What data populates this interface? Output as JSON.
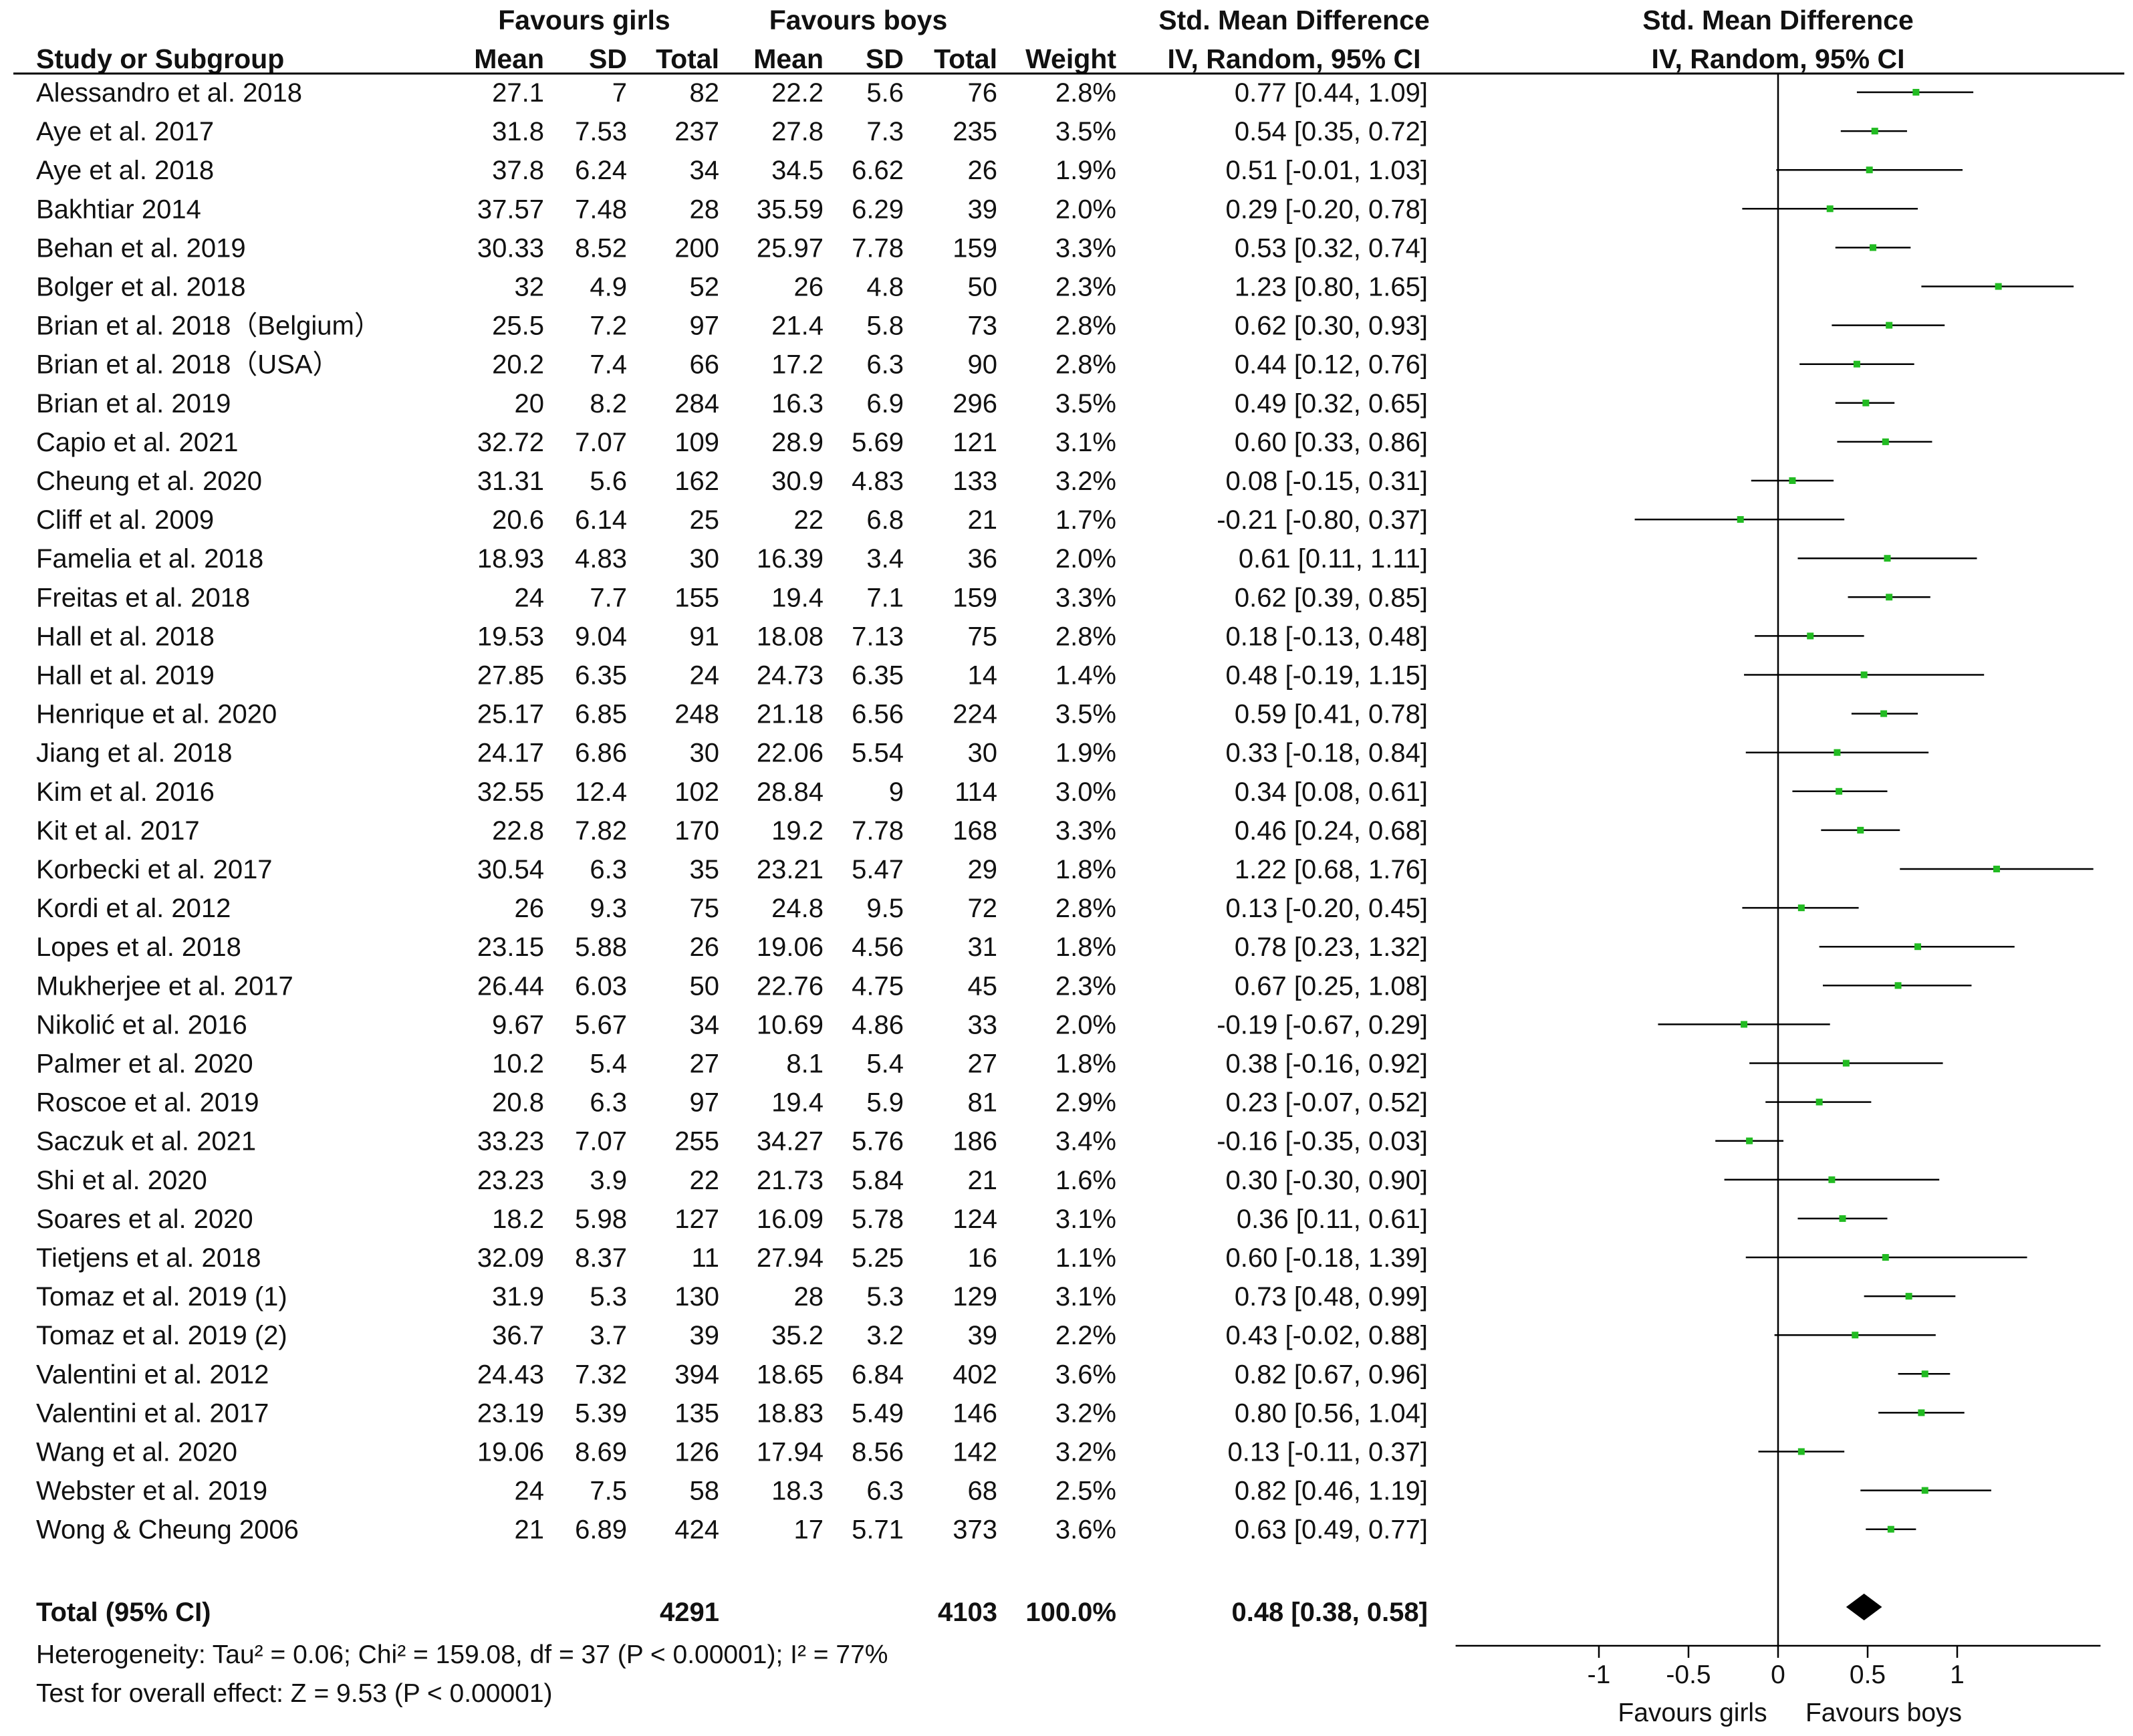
{
  "chart_data": {
    "type": "forest",
    "title": "Std. Mean Difference",
    "headers": {
      "group1": "Favours girls",
      "group2": "Favours boys",
      "study": "Study or Subgroup",
      "mean": "Mean",
      "sd": "SD",
      "total": "Total",
      "weight": "Weight",
      "smd": "Std. Mean Difference",
      "method": "IV, Random, 95% CI"
    },
    "studies": [
      {
        "name": "Alessandro et al. 2018",
        "m1": "27.1",
        "sd1": "7",
        "n1": "82",
        "m2": "22.2",
        "sd2": "5.6",
        "n2": "76",
        "weight": "2.8%",
        "ci_text": "0.77 [0.44, 1.09]",
        "est": 0.77,
        "lo": 0.44,
        "hi": 1.09
      },
      {
        "name": "Aye et al. 2017",
        "m1": "31.8",
        "sd1": "7.53",
        "n1": "237",
        "m2": "27.8",
        "sd2": "7.3",
        "n2": "235",
        "weight": "3.5%",
        "ci_text": "0.54 [0.35, 0.72]",
        "est": 0.54,
        "lo": 0.35,
        "hi": 0.72
      },
      {
        "name": "Aye et al. 2018",
        "m1": "37.8",
        "sd1": "6.24",
        "n1": "34",
        "m2": "34.5",
        "sd2": "6.62",
        "n2": "26",
        "weight": "1.9%",
        "ci_text": "0.51 [-0.01, 1.03]",
        "est": 0.51,
        "lo": -0.01,
        "hi": 1.03
      },
      {
        "name": "Bakhtiar 2014",
        "m1": "37.57",
        "sd1": "7.48",
        "n1": "28",
        "m2": "35.59",
        "sd2": "6.29",
        "n2": "39",
        "weight": "2.0%",
        "ci_text": "0.29 [-0.20, 0.78]",
        "est": 0.29,
        "lo": -0.2,
        "hi": 0.78
      },
      {
        "name": "Behan et al. 2019",
        "m1": "30.33",
        "sd1": "8.52",
        "n1": "200",
        "m2": "25.97",
        "sd2": "7.78",
        "n2": "159",
        "weight": "3.3%",
        "ci_text": "0.53 [0.32, 0.74]",
        "est": 0.53,
        "lo": 0.32,
        "hi": 0.74
      },
      {
        "name": "Bolger et al. 2018",
        "m1": "32",
        "sd1": "4.9",
        "n1": "52",
        "m2": "26",
        "sd2": "4.8",
        "n2": "50",
        "weight": "2.3%",
        "ci_text": "1.23 [0.80, 1.65]",
        "est": 1.23,
        "lo": 0.8,
        "hi": 1.65
      },
      {
        "name": "Brian et al. 2018（Belgium）",
        "m1": "25.5",
        "sd1": "7.2",
        "n1": "97",
        "m2": "21.4",
        "sd2": "5.8",
        "n2": "73",
        "weight": "2.8%",
        "ci_text": "0.62 [0.30, 0.93]",
        "est": 0.62,
        "lo": 0.3,
        "hi": 0.93
      },
      {
        "name": "Brian et al. 2018（USA）",
        "m1": "20.2",
        "sd1": "7.4",
        "n1": "66",
        "m2": "17.2",
        "sd2": "6.3",
        "n2": "90",
        "weight": "2.8%",
        "ci_text": "0.44 [0.12, 0.76]",
        "est": 0.44,
        "lo": 0.12,
        "hi": 0.76
      },
      {
        "name": "Brian et al. 2019",
        "m1": "20",
        "sd1": "8.2",
        "n1": "284",
        "m2": "16.3",
        "sd2": "6.9",
        "n2": "296",
        "weight": "3.5%",
        "ci_text": "0.49 [0.32, 0.65]",
        "est": 0.49,
        "lo": 0.32,
        "hi": 0.65
      },
      {
        "name": "Capio et al. 2021",
        "m1": "32.72",
        "sd1": "7.07",
        "n1": "109",
        "m2": "28.9",
        "sd2": "5.69",
        "n2": "121",
        "weight": "3.1%",
        "ci_text": "0.60 [0.33, 0.86]",
        "est": 0.6,
        "lo": 0.33,
        "hi": 0.86
      },
      {
        "name": "Cheung et al. 2020",
        "m1": "31.31",
        "sd1": "5.6",
        "n1": "162",
        "m2": "30.9",
        "sd2": "4.83",
        "n2": "133",
        "weight": "3.2%",
        "ci_text": "0.08 [-0.15, 0.31]",
        "est": 0.08,
        "lo": -0.15,
        "hi": 0.31
      },
      {
        "name": "Cliff et al. 2009",
        "m1": "20.6",
        "sd1": "6.14",
        "n1": "25",
        "m2": "22",
        "sd2": "6.8",
        "n2": "21",
        "weight": "1.7%",
        "ci_text": "-0.21 [-0.80, 0.37]",
        "est": -0.21,
        "lo": -0.8,
        "hi": 0.37
      },
      {
        "name": "Famelia et al. 2018",
        "m1": "18.93",
        "sd1": "4.83",
        "n1": "30",
        "m2": "16.39",
        "sd2": "3.4",
        "n2": "36",
        "weight": "2.0%",
        "ci_text": "0.61 [0.11, 1.11]",
        "est": 0.61,
        "lo": 0.11,
        "hi": 1.11
      },
      {
        "name": "Freitas et al. 2018",
        "m1": "24",
        "sd1": "7.7",
        "n1": "155",
        "m2": "19.4",
        "sd2": "7.1",
        "n2": "159",
        "weight": "3.3%",
        "ci_text": "0.62 [0.39, 0.85]",
        "est": 0.62,
        "lo": 0.39,
        "hi": 0.85
      },
      {
        "name": "Hall et al. 2018",
        "m1": "19.53",
        "sd1": "9.04",
        "n1": "91",
        "m2": "18.08",
        "sd2": "7.13",
        "n2": "75",
        "weight": "2.8%",
        "ci_text": "0.18 [-0.13, 0.48]",
        "est": 0.18,
        "lo": -0.13,
        "hi": 0.48
      },
      {
        "name": "Hall et al. 2019",
        "m1": "27.85",
        "sd1": "6.35",
        "n1": "24",
        "m2": "24.73",
        "sd2": "6.35",
        "n2": "14",
        "weight": "1.4%",
        "ci_text": "0.48 [-0.19, 1.15]",
        "est": 0.48,
        "lo": -0.19,
        "hi": 1.15
      },
      {
        "name": "Henrique et al. 2020",
        "m1": "25.17",
        "sd1": "6.85",
        "n1": "248",
        "m2": "21.18",
        "sd2": "6.56",
        "n2": "224",
        "weight": "3.5%",
        "ci_text": "0.59 [0.41, 0.78]",
        "est": 0.59,
        "lo": 0.41,
        "hi": 0.78
      },
      {
        "name": "Jiang et al. 2018",
        "m1": "24.17",
        "sd1": "6.86",
        "n1": "30",
        "m2": "22.06",
        "sd2": "5.54",
        "n2": "30",
        "weight": "1.9%",
        "ci_text": "0.33 [-0.18, 0.84]",
        "est": 0.33,
        "lo": -0.18,
        "hi": 0.84
      },
      {
        "name": "Kim et al. 2016",
        "m1": "32.55",
        "sd1": "12.4",
        "n1": "102",
        "m2": "28.84",
        "sd2": "9",
        "n2": "114",
        "weight": "3.0%",
        "ci_text": "0.34 [0.08, 0.61]",
        "est": 0.34,
        "lo": 0.08,
        "hi": 0.61
      },
      {
        "name": "Kit et al. 2017",
        "m1": "22.8",
        "sd1": "7.82",
        "n1": "170",
        "m2": "19.2",
        "sd2": "7.78",
        "n2": "168",
        "weight": "3.3%",
        "ci_text": "0.46 [0.24, 0.68]",
        "est": 0.46,
        "lo": 0.24,
        "hi": 0.68
      },
      {
        "name": "Korbecki et al. 2017",
        "m1": "30.54",
        "sd1": "6.3",
        "n1": "35",
        "m2": "23.21",
        "sd2": "5.47",
        "n2": "29",
        "weight": "1.8%",
        "ci_text": "1.22 [0.68, 1.76]",
        "est": 1.22,
        "lo": 0.68,
        "hi": 1.76
      },
      {
        "name": "Kordi et al. 2012",
        "m1": "26",
        "sd1": "9.3",
        "n1": "75",
        "m2": "24.8",
        "sd2": "9.5",
        "n2": "72",
        "weight": "2.8%",
        "ci_text": "0.13 [-0.20, 0.45]",
        "est": 0.13,
        "lo": -0.2,
        "hi": 0.45
      },
      {
        "name": "Lopes et al. 2018",
        "m1": "23.15",
        "sd1": "5.88",
        "n1": "26",
        "m2": "19.06",
        "sd2": "4.56",
        "n2": "31",
        "weight": "1.8%",
        "ci_text": "0.78 [0.23, 1.32]",
        "est": 0.78,
        "lo": 0.23,
        "hi": 1.32
      },
      {
        "name": "Mukherjee et al. 2017",
        "m1": "26.44",
        "sd1": "6.03",
        "n1": "50",
        "m2": "22.76",
        "sd2": "4.75",
        "n2": "45",
        "weight": "2.3%",
        "ci_text": "0.67 [0.25, 1.08]",
        "est": 0.67,
        "lo": 0.25,
        "hi": 1.08
      },
      {
        "name": "Nikolić et al. 2016",
        "m1": "9.67",
        "sd1": "5.67",
        "n1": "34",
        "m2": "10.69",
        "sd2": "4.86",
        "n2": "33",
        "weight": "2.0%",
        "ci_text": "-0.19 [-0.67, 0.29]",
        "est": -0.19,
        "lo": -0.67,
        "hi": 0.29
      },
      {
        "name": "Palmer et al. 2020",
        "m1": "10.2",
        "sd1": "5.4",
        "n1": "27",
        "m2": "8.1",
        "sd2": "5.4",
        "n2": "27",
        "weight": "1.8%",
        "ci_text": "0.38 [-0.16, 0.92]",
        "est": 0.38,
        "lo": -0.16,
        "hi": 0.92
      },
      {
        "name": "Roscoe et al. 2019",
        "m1": "20.8",
        "sd1": "6.3",
        "n1": "97",
        "m2": "19.4",
        "sd2": "5.9",
        "n2": "81",
        "weight": "2.9%",
        "ci_text": "0.23 [-0.07, 0.52]",
        "est": 0.23,
        "lo": -0.07,
        "hi": 0.52
      },
      {
        "name": "Saczuk et al. 2021",
        "m1": "33.23",
        "sd1": "7.07",
        "n1": "255",
        "m2": "34.27",
        "sd2": "5.76",
        "n2": "186",
        "weight": "3.4%",
        "ci_text": "-0.16 [-0.35, 0.03]",
        "est": -0.16,
        "lo": -0.35,
        "hi": 0.03
      },
      {
        "name": "Shi et al. 2020",
        "m1": "23.23",
        "sd1": "3.9",
        "n1": "22",
        "m2": "21.73",
        "sd2": "5.84",
        "n2": "21",
        "weight": "1.6%",
        "ci_text": "0.30 [-0.30, 0.90]",
        "est": 0.3,
        "lo": -0.3,
        "hi": 0.9
      },
      {
        "name": "Soares et al. 2020",
        "m1": "18.2",
        "sd1": "5.98",
        "n1": "127",
        "m2": "16.09",
        "sd2": "5.78",
        "n2": "124",
        "weight": "3.1%",
        "ci_text": "0.36 [0.11, 0.61]",
        "est": 0.36,
        "lo": 0.11,
        "hi": 0.61
      },
      {
        "name": "Tietjens et al. 2018",
        "m1": "32.09",
        "sd1": "8.37",
        "n1": "11",
        "m2": "27.94",
        "sd2": "5.25",
        "n2": "16",
        "weight": "1.1%",
        "ci_text": "0.60 [-0.18, 1.39]",
        "est": 0.6,
        "lo": -0.18,
        "hi": 1.39
      },
      {
        "name": "Tomaz et al. 2019 (1)",
        "m1": "31.9",
        "sd1": "5.3",
        "n1": "130",
        "m2": "28",
        "sd2": "5.3",
        "n2": "129",
        "weight": "3.1%",
        "ci_text": "0.73 [0.48, 0.99]",
        "est": 0.73,
        "lo": 0.48,
        "hi": 0.99
      },
      {
        "name": "Tomaz et al. 2019 (2)",
        "m1": "36.7",
        "sd1": "3.7",
        "n1": "39",
        "m2": "35.2",
        "sd2": "3.2",
        "n2": "39",
        "weight": "2.2%",
        "ci_text": "0.43 [-0.02, 0.88]",
        "est": 0.43,
        "lo": -0.02,
        "hi": 0.88
      },
      {
        "name": "Valentini et al. 2012",
        "m1": "24.43",
        "sd1": "7.32",
        "n1": "394",
        "m2": "18.65",
        "sd2": "6.84",
        "n2": "402",
        "weight": "3.6%",
        "ci_text": "0.82 [0.67, 0.96]",
        "est": 0.82,
        "lo": 0.67,
        "hi": 0.96
      },
      {
        "name": "Valentini et al. 2017",
        "m1": "23.19",
        "sd1": "5.39",
        "n1": "135",
        "m2": "18.83",
        "sd2": "5.49",
        "n2": "146",
        "weight": "3.2%",
        "ci_text": "0.80 [0.56, 1.04]",
        "est": 0.8,
        "lo": 0.56,
        "hi": 1.04
      },
      {
        "name": "Wang et al. 2020",
        "m1": "19.06",
        "sd1": "8.69",
        "n1": "126",
        "m2": "17.94",
        "sd2": "8.56",
        "n2": "142",
        "weight": "3.2%",
        "ci_text": "0.13 [-0.11, 0.37]",
        "est": 0.13,
        "lo": -0.11,
        "hi": 0.37
      },
      {
        "name": "Webster et al. 2019",
        "m1": "24",
        "sd1": "7.5",
        "n1": "58",
        "m2": "18.3",
        "sd2": "6.3",
        "n2": "68",
        "weight": "2.5%",
        "ci_text": "0.82 [0.46, 1.19]",
        "est": 0.82,
        "lo": 0.46,
        "hi": 1.19
      },
      {
        "name": "Wong & Cheung 2006",
        "m1": "21",
        "sd1": "6.89",
        "n1": "424",
        "m2": "17",
        "sd2": "5.71",
        "n2": "373",
        "weight": "3.6%",
        "ci_text": "0.63 [0.49, 0.77]",
        "est": 0.63,
        "lo": 0.49,
        "hi": 0.77
      }
    ],
    "total": {
      "label": "Total (95% CI)",
      "n1": "4291",
      "n2": "4103",
      "weight": "100.0%",
      "ci_text": "0.48 [0.38, 0.58]",
      "est": 0.48,
      "lo": 0.38,
      "hi": 0.58
    },
    "heterogeneity": "Heterogeneity: Tau² = 0.06; Chi² = 159.08, df = 37 (P < 0.00001); I² = 77%",
    "overall_effect": "Test for overall effect: Z = 9.53 (P < 0.00001)",
    "axis": {
      "xlim": [
        -1.8,
        1.8
      ],
      "ticks": [
        -1,
        -0.5,
        0,
        0.5,
        1
      ],
      "tick_labels": [
        "-1",
        "-0.5",
        "0",
        "0.5",
        "1"
      ],
      "left_label": "Favours girls",
      "right_label": "Favours boys"
    },
    "marker_color": "#22bb22"
  }
}
